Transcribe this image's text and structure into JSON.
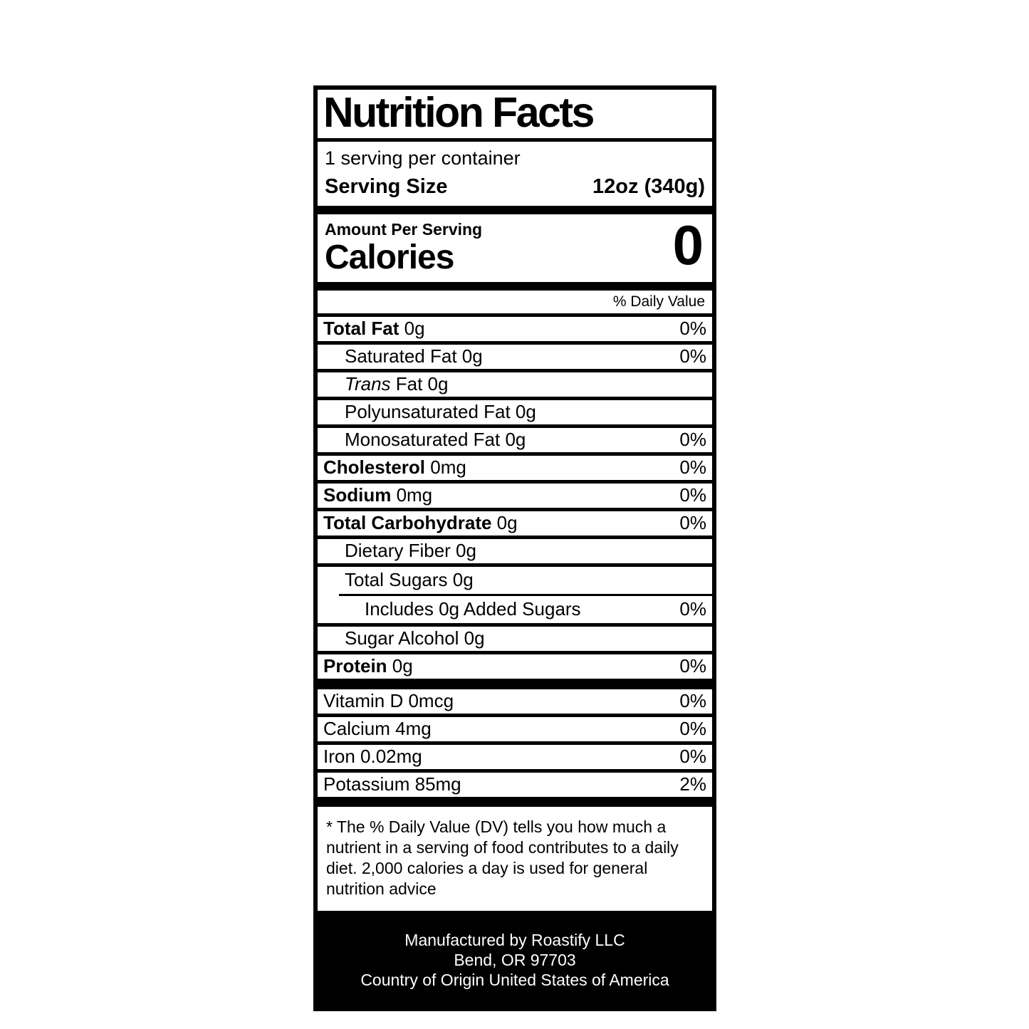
{
  "colors": {
    "ink": "#000000",
    "paper": "#ffffff"
  },
  "label": {
    "title": "Nutrition Facts",
    "servings_per_container": "1 serving per container",
    "serving_size": {
      "label": "Serving Size",
      "value": "12oz (340g)"
    },
    "calories": {
      "heading": "Amount Per Serving",
      "label": "Calories",
      "value": "0"
    },
    "daily_value_header": "% Daily Value",
    "rows": [
      {
        "bold": "Total Fat",
        "text": " 0g",
        "pct": "0%"
      },
      {
        "text": "Saturated Fat 0g",
        "pct": "0%"
      },
      {
        "italic": "Trans",
        "text": " Fat 0g"
      },
      {
        "text": "Polyunsaturated Fat 0g"
      },
      {
        "text": "Monosaturated Fat 0g",
        "pct": "0%"
      },
      {
        "bold": "Cholesterol",
        "text": " 0mg",
        "pct": "0%"
      },
      {
        "bold": "Sodium",
        "text": " 0mg",
        "pct": "0%"
      },
      {
        "bold": "Total Carbohydrate",
        "text": " 0g",
        "pct": "0%"
      },
      {
        "text": "Dietary Fiber 0g"
      },
      {
        "text": "Total Sugars 0g"
      },
      {
        "text": "Includes 0g Added Sugars",
        "pct": "0%"
      },
      {
        "text": "Sugar Alcohol 0g"
      },
      {
        "bold": "Protein",
        "text": " 0g",
        "pct": "0%"
      },
      {
        "text": "Vitamin D 0mcg",
        "pct": "0%"
      },
      {
        "text": "Calcium 4mg",
        "pct": "0%"
      },
      {
        "text": "Iron 0.02mg",
        "pct": "0%"
      },
      {
        "text": "Potassium 85mg",
        "pct": "2%"
      }
    ],
    "footnote": "* The % Daily Value (DV) tells you how much a nutrient in a serving of food contributes to a daily diet. 2,000 calories a day is used for general nutrition advice",
    "footer": {
      "line1": "Manufactured by Roastify LLC",
      "line2": "Bend, OR 97703",
      "line3": "Country of Origin United States of America"
    }
  }
}
